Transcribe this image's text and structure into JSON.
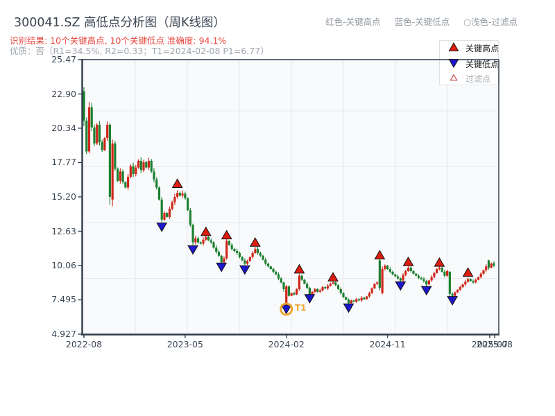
{
  "header": {
    "title": "300041.SZ 高低点分析图（周K线图）",
    "result_line": "识别结果: 10个关键高点, 10个关键低点  准确度: 94.1%",
    "quality_line": "优质：否（R1=34.5%, R2=0.33；T1=2024-02-08 P1=6.77）",
    "legend_note_high": "红色-关键高点",
    "legend_note_low": "蓝色-关键低点",
    "legend_note_filtered": "○浅色-过滤点"
  },
  "legend": {
    "items": [
      {
        "label": "关键高点",
        "marker": "red-up-triangle"
      },
      {
        "label": "关键低点",
        "marker": "blue-down-triangle"
      },
      {
        "label": "过滤点",
        "marker": "light-up-triangle"
      }
    ]
  },
  "colors": {
    "up_candle": "#d0261a",
    "down_candle": "#1c8030",
    "key_high_marker": "#dd1c10",
    "key_low_marker": "#1c17cd",
    "filtered_marker_edge": "#b3392c",
    "t1_ring": "#f0a432",
    "grid": "#e8eaef",
    "spine": "#2e3b4a",
    "title_text": "#3a4450",
    "red_text": "#e8463c",
    "gray_text": "#a0a7ae",
    "tick_text": "#3c4856",
    "plot_bg": "#f9fafc"
  },
  "chart_data": {
    "type": "candlestick",
    "title": "300041.SZ 高低点分析图（周K线图）",
    "grid": true,
    "ylim": [
      4.927,
      25.47
    ],
    "y_tick_values": [
      25.47,
      22.9,
      20.34,
      17.77,
      15.2,
      12.63,
      10.06,
      7.495,
      4.927
    ],
    "y_tick_labels": [
      "25.47",
      "22.90",
      "20.34",
      "17.77",
      "15.20",
      "12.63",
      "10.06",
      "7.495",
      "4.927"
    ],
    "x_ticks": [
      {
        "label": "2022-08",
        "week": 0
      },
      {
        "label": "2023-05",
        "week": 39
      },
      {
        "label": "2024-02",
        "week": 78
      },
      {
        "label": "2024-11",
        "week": 117
      },
      {
        "label": "2025-07",
        "week": 156.4
      },
      {
        "label": "2025-08",
        "week": 158.3
      }
    ],
    "closes": [
      20.9,
      18.6,
      21.9,
      20.4,
      19.2,
      20.6,
      19.3,
      18.7,
      19.6,
      20.6,
      15.2,
      19.2,
      17.3,
      16.4,
      17.1,
      16.3,
      15.9,
      16.7,
      17.5,
      16.9,
      17.4,
      17.9,
      17.2,
      17.8,
      17.4,
      17.9,
      17.1,
      16.5,
      15.9,
      15.0,
      13.5,
      14.0,
      13.7,
      14.3,
      14.8,
      15.2,
      15.5,
      15.3,
      15.45,
      15.1,
      14.2,
      13.1,
      11.8,
      12.1,
      11.8,
      11.7,
      12.0,
      12.2,
      11.95,
      11.8,
      11.4,
      11.1,
      10.8,
      10.3,
      10.6,
      11.9,
      11.6,
      11.3,
      11.15,
      11.0,
      10.7,
      10.45,
      10.2,
      10.4,
      10.7,
      11.0,
      11.3,
      11.0,
      10.8,
      10.5,
      10.2,
      10.0,
      9.8,
      9.6,
      9.4,
      9.1,
      8.8,
      8.3,
      8.5,
      7.8,
      8.0,
      7.9,
      8.3,
      9.3,
      9.0,
      8.7,
      8.4,
      7.9,
      8.1,
      8.3,
      8.1,
      8.2,
      8.45,
      8.35,
      8.55,
      8.7,
      8.8,
      8.6,
      8.3,
      8.0,
      7.7,
      7.5,
      7.25,
      7.45,
      7.35,
      7.55,
      7.45,
      7.65,
      7.55,
      7.75,
      8.0,
      8.35,
      8.7,
      8.8,
      8.4,
      9.8,
      10.05,
      9.8,
      9.6,
      9.4,
      9.25,
      9.1,
      8.95,
      9.35,
      9.65,
      9.9,
      9.65,
      9.45,
      9.3,
      9.15,
      9.05,
      8.9,
      8.65,
      8.95,
      9.2,
      9.5,
      9.8,
      9.9,
      9.6,
      9.3,
      9.65,
      7.95,
      7.8,
      8.05,
      8.25,
      8.45,
      8.65,
      8.85,
      9.05,
      8.9,
      8.8,
      9.0,
      9.2,
      9.45,
      9.7,
      10.0,
      9.9,
      10.2,
      10.05
    ],
    "overrides": {
      "0": {
        "o": 23.1,
        "h": 23.4,
        "l": 20.5
      },
      "2": {
        "h": 22.3
      },
      "10": {
        "l": 14.6
      },
      "11": {
        "o": 15.0,
        "h": 19.5,
        "l": 14.5
      },
      "30": {
        "l": 13.3
      },
      "36": {
        "h": 15.7
      },
      "42": {
        "l": 11.6
      },
      "47": {
        "h": 12.35
      },
      "53": {
        "l": 10.2
      },
      "55": {
        "h": 12.05
      },
      "62": {
        "l": 10.1
      },
      "66": {
        "h": 11.45
      },
      "77": {
        "l": 8.1
      },
      "78": {
        "o": 6.9,
        "l": 6.77,
        "h": 8.6
      },
      "83": {
        "h": 9.45
      },
      "87": {
        "l": 7.8
      },
      "96": {
        "h": 8.9
      },
      "102": {
        "l": 7.1
      },
      "113": {
        "h": 8.9
      },
      "114": {
        "o": 10.45,
        "h": 10.55,
        "l": 8.2
      },
      "115": {
        "o": 8.0,
        "h": 10.0,
        "l": 7.9
      },
      "116": {
        "h": 10.15
      },
      "122": {
        "l": 8.8
      },
      "125": {
        "h": 10.0
      },
      "132": {
        "l": 8.5
      },
      "137": {
        "h": 10.0
      },
      "141": {
        "o": 9.6,
        "l": 7.65
      },
      "142": {
        "l": 7.7
      },
      "148": {
        "h": 9.15
      },
      "156": {
        "o": 10.45,
        "h": 10.5,
        "l": 9.75
      },
      "157": {
        "h": 10.3
      },
      "158": {
        "o": 10.25,
        "l": 9.95
      }
    },
    "key_highs": [
      [
        36,
        16.2
      ],
      [
        47,
        12.6
      ],
      [
        55,
        12.35
      ],
      [
        66,
        11.8
      ],
      [
        83,
        9.8
      ],
      [
        96,
        9.2
      ],
      [
        114,
        10.85
      ],
      [
        125,
        10.35
      ],
      [
        137,
        10.3
      ],
      [
        148,
        9.55
      ]
    ],
    "key_lows": [
      [
        30,
        12.95
      ],
      [
        42,
        11.25
      ],
      [
        53,
        9.95
      ],
      [
        62,
        9.75
      ],
      [
        78,
        6.8
      ],
      [
        87,
        7.6
      ],
      [
        102,
        6.9
      ],
      [
        122,
        8.55
      ],
      [
        132,
        8.2
      ],
      [
        142,
        7.45
      ]
    ],
    "t1": {
      "week": 78,
      "price": 6.8,
      "label": "T1",
      "date": "2024-02-08",
      "p1": 6.77
    }
  }
}
